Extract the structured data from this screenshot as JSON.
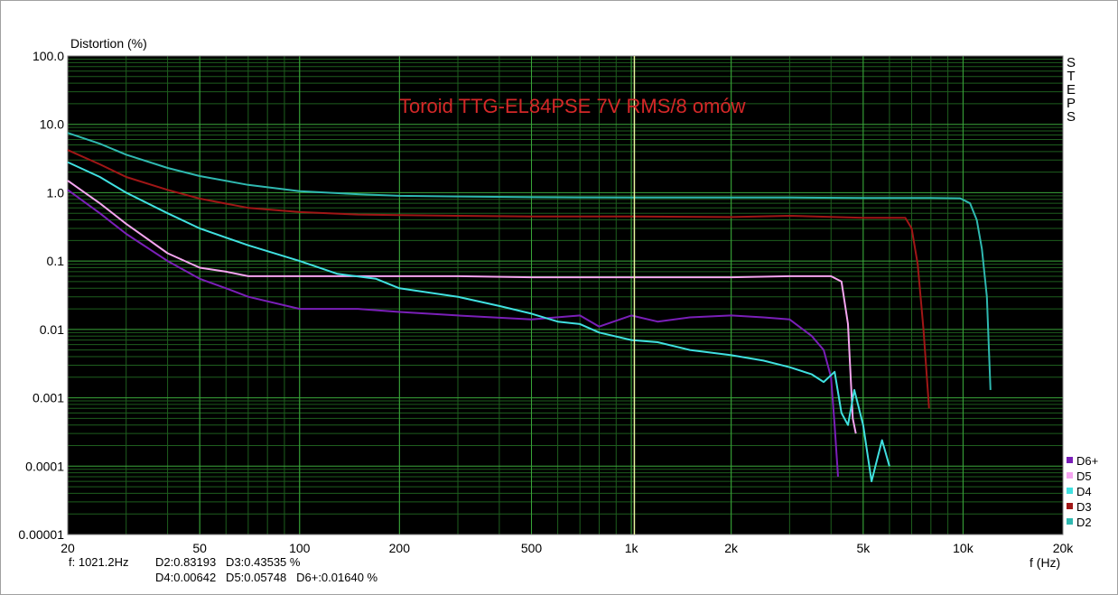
{
  "chart_data": {
    "type": "line",
    "title": "Toroid TTG-EL84PSE  7V RMS/8 omów",
    "ylabel": "Distortion (%)",
    "xlabel": "f (Hz)",
    "x_scale": "log",
    "y_scale": "log",
    "xlim": [
      20,
      20000
    ],
    "ylim": [
      1e-05,
      100
    ],
    "x_ticks": [
      {
        "value": 20,
        "label": "20"
      },
      {
        "value": 50,
        "label": "50"
      },
      {
        "value": 100,
        "label": "100"
      },
      {
        "value": 200,
        "label": "200"
      },
      {
        "value": 500,
        "label": "500"
      },
      {
        "value": 1000,
        "label": "1k"
      },
      {
        "value": 2000,
        "label": "2k"
      },
      {
        "value": 5000,
        "label": "5k"
      },
      {
        "value": 10000,
        "label": "10k"
      },
      {
        "value": 20000,
        "label": "20k"
      }
    ],
    "y_ticks": [
      {
        "value": 100,
        "label": "100.0"
      },
      {
        "value": 10,
        "label": "10.0"
      },
      {
        "value": 1,
        "label": "1.0"
      },
      {
        "value": 0.1,
        "label": "0.1"
      },
      {
        "value": 0.01,
        "label": "0.01"
      },
      {
        "value": 0.001,
        "label": "0.001"
      },
      {
        "value": 0.0001,
        "label": "0.0001"
      },
      {
        "value": 1e-05,
        "label": "0.00001"
      }
    ],
    "grid": true,
    "cursor_x": 1021.2,
    "legend_position": "bottom-right",
    "series": [
      {
        "name": "D2",
        "color": "#2fb8b0",
        "points": [
          [
            20,
            7.5
          ],
          [
            25,
            5.2
          ],
          [
            30,
            3.6
          ],
          [
            40,
            2.3
          ],
          [
            50,
            1.75
          ],
          [
            70,
            1.3
          ],
          [
            100,
            1.05
          ],
          [
            150,
            0.95
          ],
          [
            200,
            0.9
          ],
          [
            300,
            0.88
          ],
          [
            500,
            0.86
          ],
          [
            1000,
            0.85
          ],
          [
            2000,
            0.85
          ],
          [
            3000,
            0.85
          ],
          [
            5000,
            0.84
          ],
          [
            8000,
            0.84
          ],
          [
            9800,
            0.83
          ],
          [
            10500,
            0.7
          ],
          [
            11000,
            0.4
          ],
          [
            11400,
            0.15
          ],
          [
            11800,
            0.03
          ],
          [
            12100,
            0.0013
          ]
        ]
      },
      {
        "name": "D3",
        "color": "#a01616",
        "points": [
          [
            20,
            4.2
          ],
          [
            25,
            2.6
          ],
          [
            30,
            1.7
          ],
          [
            40,
            1.1
          ],
          [
            50,
            0.82
          ],
          [
            70,
            0.6
          ],
          [
            100,
            0.52
          ],
          [
            150,
            0.48
          ],
          [
            200,
            0.47
          ],
          [
            300,
            0.46
          ],
          [
            500,
            0.45
          ],
          [
            1000,
            0.45
          ],
          [
            2000,
            0.44
          ],
          [
            3000,
            0.46
          ],
          [
            5000,
            0.43
          ],
          [
            6700,
            0.43
          ],
          [
            7000,
            0.3
          ],
          [
            7300,
            0.09
          ],
          [
            7600,
            0.01
          ],
          [
            7900,
            0.0007
          ]
        ]
      },
      {
        "name": "D4",
        "color": "#40e0e0",
        "points": [
          [
            20,
            2.8
          ],
          [
            25,
            1.7
          ],
          [
            30,
            1.0
          ],
          [
            40,
            0.5
          ],
          [
            50,
            0.3
          ],
          [
            70,
            0.17
          ],
          [
            100,
            0.1
          ],
          [
            130,
            0.065
          ],
          [
            170,
            0.055
          ],
          [
            200,
            0.04
          ],
          [
            300,
            0.03
          ],
          [
            400,
            0.022
          ],
          [
            500,
            0.017
          ],
          [
            600,
            0.013
          ],
          [
            700,
            0.012
          ],
          [
            800,
            0.009
          ],
          [
            1000,
            0.007
          ],
          [
            1200,
            0.0065
          ],
          [
            1500,
            0.005
          ],
          [
            2000,
            0.0042
          ],
          [
            2500,
            0.0035
          ],
          [
            3000,
            0.0028
          ],
          [
            3500,
            0.0022
          ],
          [
            3800,
            0.0017
          ],
          [
            4100,
            0.0024
          ],
          [
            4300,
            0.0006
          ],
          [
            4500,
            0.0004
          ],
          [
            4700,
            0.0013
          ],
          [
            5000,
            0.0004
          ],
          [
            5300,
            6e-05
          ],
          [
            5700,
            0.00024
          ],
          [
            6000,
            0.0001
          ]
        ]
      },
      {
        "name": "D5",
        "color": "#f5a5f0",
        "points": [
          [
            20,
            1.5
          ],
          [
            25,
            0.7
          ],
          [
            30,
            0.35
          ],
          [
            40,
            0.13
          ],
          [
            50,
            0.08
          ],
          [
            60,
            0.07
          ],
          [
            70,
            0.06
          ],
          [
            100,
            0.06
          ],
          [
            150,
            0.06
          ],
          [
            200,
            0.06
          ],
          [
            300,
            0.06
          ],
          [
            500,
            0.058
          ],
          [
            1000,
            0.058
          ],
          [
            2000,
            0.058
          ],
          [
            3000,
            0.06
          ],
          [
            4000,
            0.06
          ],
          [
            4300,
            0.05
          ],
          [
            4500,
            0.012
          ],
          [
            4650,
            0.0005
          ],
          [
            4750,
            0.0003
          ]
        ]
      },
      {
        "name": "D6+",
        "color": "#7a1fb8",
        "points": [
          [
            20,
            1.1
          ],
          [
            25,
            0.5
          ],
          [
            30,
            0.25
          ],
          [
            40,
            0.1
          ],
          [
            50,
            0.055
          ],
          [
            60,
            0.04
          ],
          [
            70,
            0.03
          ],
          [
            100,
            0.02
          ],
          [
            150,
            0.02
          ],
          [
            200,
            0.018
          ],
          [
            300,
            0.016
          ],
          [
            500,
            0.014
          ],
          [
            700,
            0.016
          ],
          [
            800,
            0.011
          ],
          [
            1000,
            0.016
          ],
          [
            1200,
            0.013
          ],
          [
            1500,
            0.015
          ],
          [
            2000,
            0.016
          ],
          [
            2500,
            0.015
          ],
          [
            3000,
            0.014
          ],
          [
            3500,
            0.008
          ],
          [
            3800,
            0.005
          ],
          [
            4000,
            0.002
          ],
          [
            4100,
            0.0004
          ],
          [
            4200,
            7e-05
          ]
        ]
      }
    ]
  },
  "readout": {
    "freq": "f: 1021.2Hz",
    "line1": "D2:0.83193   D3:0.43535 %",
    "line2": "D4:0.00642   D5:0.05748   D6+:0.01640 %"
  },
  "side_panel": {
    "steps_letters": [
      "S",
      "T",
      "E",
      "P",
      "S"
    ]
  },
  "legend": [
    {
      "name": "D6+",
      "color": "#7a1fb8"
    },
    {
      "name": "D5",
      "color": "#f5a5f0"
    },
    {
      "name": "D4",
      "color": "#40e0e0"
    },
    {
      "name": "D3",
      "color": "#a01616"
    },
    {
      "name": "D2",
      "color": "#2fb8b0"
    }
  ],
  "colors": {
    "plot_background": "#000000",
    "major_grid": "#3aa63a",
    "minor_grid": "#1e5e1e",
    "cursor": "#e8f5a0",
    "title": "#d42828"
  }
}
